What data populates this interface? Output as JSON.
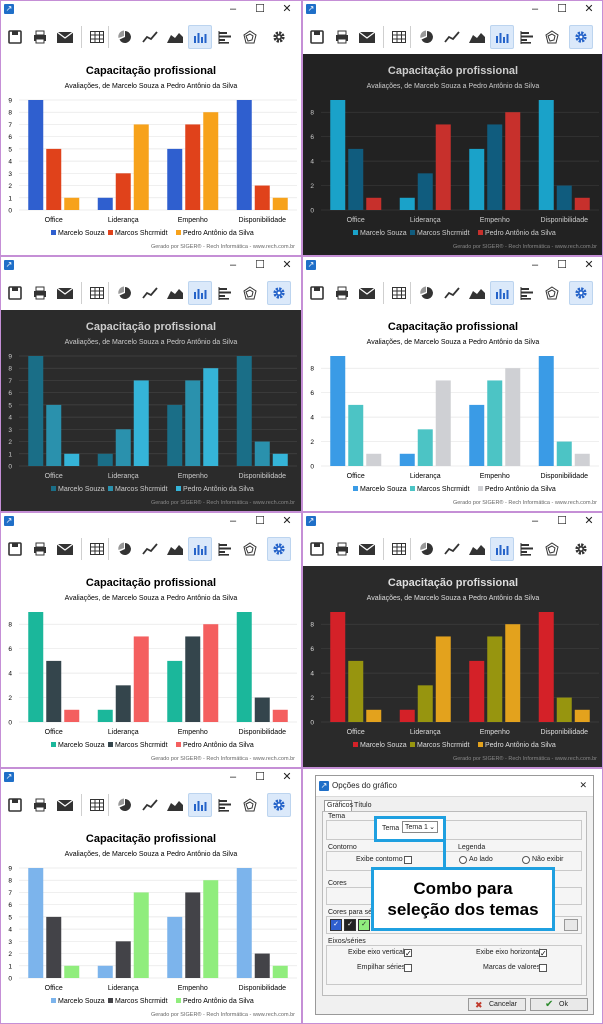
{
  "window": {
    "minimize_label": "–",
    "maximize_label": "☐",
    "close_label": "✕"
  },
  "toolbar_icons": [
    "save-icon",
    "print-icon",
    "email-icon",
    "table-icon",
    "pie-chart-icon",
    "line-chart-icon",
    "area-chart-icon",
    "bar-chart-icon",
    "horizontal-bar-chart-icon",
    "radar-chart-icon",
    "gear-icon"
  ],
  "chart_text": {
    "title": "Capacitação profissional",
    "subtitle": "Avaliações, de Marcelo Souza a Pedro Antônio da Silva",
    "credit": "Gerado por SIGER® - Rech Informática - www.rech.com.br"
  },
  "chart_data": {
    "type": "bar",
    "title": "Capacitação profissional",
    "subtitle": "Avaliações, de Marcelo Souza a Pedro Antônio da Silva",
    "categories": [
      "Office",
      "Liderança",
      "Empenho",
      "Disponibilidade"
    ],
    "series": [
      {
        "name": "Marcelo Souza",
        "values": [
          9,
          1,
          5,
          9
        ]
      },
      {
        "name": "Marcos Shcrmidt",
        "values": [
          5,
          3,
          7,
          2
        ]
      },
      {
        "name": "Pedro Antônio da Silva",
        "values": [
          1,
          7,
          8,
          1
        ]
      }
    ],
    "ylim": [
      0,
      9
    ],
    "legend": "bottom"
  },
  "themes": [
    {
      "bg": "#ffffff",
      "text": "#000000",
      "grid": "#e6e6e6",
      "colors": [
        "#2f5fcf",
        "#e0421b",
        "#f7a21b"
      ],
      "yticks": [
        0,
        1,
        2,
        3,
        4,
        5,
        6,
        7,
        8,
        9
      ],
      "gear_active": false
    },
    {
      "bg": "#222222",
      "text": "#cccccc",
      "grid": "#3a3a3a",
      "colors": [
        "#1aa2c9",
        "#105c7e",
        "#c7302c"
      ],
      "yticks": [
        0,
        2,
        4,
        6,
        8
      ],
      "gear_active": true
    },
    {
      "bg": "#2b2b2b",
      "text": "#cccccc",
      "grid": "#444444",
      "colors": [
        "#1a6e87",
        "#2a91ad",
        "#35b4d8"
      ],
      "yticks": [
        0,
        1,
        2,
        3,
        4,
        5,
        6,
        7,
        8,
        9
      ],
      "gear_active": true
    },
    {
      "bg": "#ffffff",
      "text": "#000000",
      "grid": "#e6e6e6",
      "colors": [
        "#3a9be6",
        "#4cc4c5",
        "#cfd0d4"
      ],
      "yticks": [
        0,
        2,
        4,
        6,
        8
      ],
      "gear_active": true
    },
    {
      "bg": "#ffffff",
      "text": "#000000",
      "grid": "#e6e6e6",
      "colors": [
        "#1bb79b",
        "#34454c",
        "#f45f5f"
      ],
      "yticks": [
        0,
        2,
        4,
        6,
        8
      ],
      "gear_active": true
    },
    {
      "bg": "#2a2a2a",
      "text": "#dddddd",
      "grid": "#3f3f3f",
      "colors": [
        "#d42128",
        "#97950f",
        "#e3a21d"
      ],
      "yticks": [
        0,
        2,
        4,
        6,
        8
      ],
      "gear_active": false
    },
    {
      "bg": "#ffffff",
      "text": "#000000",
      "grid": "#e6e6e6",
      "colors": [
        "#7cb4ec",
        "#434348",
        "#90ed7d"
      ],
      "yticks": [
        0,
        1,
        2,
        3,
        4,
        5,
        6,
        7,
        8,
        9
      ],
      "gear_active": true
    }
  ],
  "dialog": {
    "title": "Opções do gráfico",
    "tabs": [
      "Gráficos",
      "Título"
    ],
    "tema_section": "Tema",
    "tema_label": "Tema",
    "tema_value": "Tema 1",
    "contorno_section": "Contorno",
    "exibe_contorno": "Exibe contorno",
    "legenda_section": "Legenda",
    "ao_lado": "Ao lado",
    "nao_exibir": "Não exibir",
    "cores_section": "Cores",
    "cores_partial": "Co",
    "cores_series_section": "Cores para sé",
    "eixos_section": "Eixos/séries",
    "exibe_eixo_vertical": "Exibe eixo vertical",
    "exibe_eixo_horizontal": "Exibe eixo horizontal",
    "empilhar_series": "Empilhar séries",
    "marcas_valores": "Marcas de valores",
    "cancel": "Cancelar",
    "ok": "Ok",
    "callout": "Combo para seleção dos temas",
    "swatches": [
      "#2f5fcf",
      "#222222",
      "#90ed7d"
    ]
  }
}
